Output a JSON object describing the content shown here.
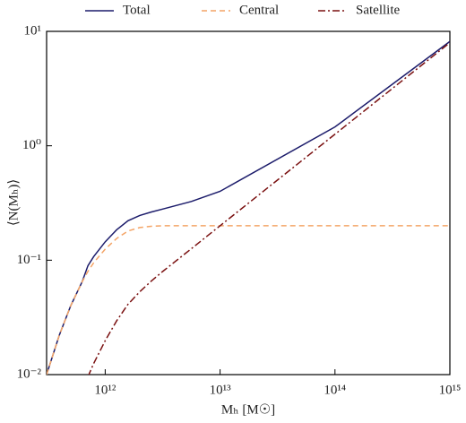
{
  "chart_data": {
    "type": "line",
    "xlabel": "Mₕ [M☉]",
    "ylabel": "⟨N(Mₕ)⟩",
    "xscale": "log",
    "yscale": "log",
    "x": [
      309000000000.0,
      398000000000.0,
      501000000000.0,
      631000000000.0,
      708000000000.0,
      794000000000.0,
      1000000000000.0,
      1260000000000.0,
      1580000000000.0,
      2000000000000.0,
      2510000000000.0,
      3160000000000.0,
      5620000000000.0,
      10000000000000.0,
      100000000000000.0,
      1000000000000000.0
    ],
    "series": [
      {
        "name": "Total",
        "color": "#1c1c6b",
        "dash": "solid",
        "values": [
          0.01,
          0.022,
          0.04,
          0.065,
          0.0896,
          0.1075,
          0.1448,
          0.1846,
          0.2212,
          0.246,
          0.2635,
          0.2796,
          0.326,
          0.4,
          1.462,
          8.16
        ]
      },
      {
        "name": "Central",
        "color": "#f4a466",
        "dash": "dashed",
        "values": [
          0.01,
          0.022,
          0.04,
          0.065,
          0.08,
          0.095,
          0.125,
          0.155,
          0.18,
          0.193,
          0.198,
          0.2,
          0.2,
          0.2,
          0.2,
          0.2
        ]
      },
      {
        "name": "Satellite",
        "color": "#7a1010",
        "dash": "dashdot",
        "values": [
          null,
          null,
          null,
          null,
          0.0096,
          0.0125,
          0.0198,
          0.0296,
          0.0412,
          0.053,
          0.0655,
          0.0796,
          0.126,
          0.2,
          1.262,
          7.96
        ]
      }
    ],
    "xlim": [
      309000000000.0,
      1000000000000000.0
    ],
    "ylim": [
      0.01,
      10
    ],
    "xticks": [
      {
        "value": 1000000000000.0,
        "label": "10¹²"
      },
      {
        "value": 10000000000000.0,
        "label": "10¹³"
      },
      {
        "value": 100000000000000.0,
        "label": "10¹⁴"
      },
      {
        "value": 1000000000000000.0,
        "label": "10¹⁵"
      }
    ],
    "yticks": [
      {
        "value": 0.01,
        "label": "10⁻²"
      },
      {
        "value": 0.1,
        "label": "10⁻¹"
      },
      {
        "value": 1,
        "label": "10⁰"
      },
      {
        "value": 10,
        "label": "10¹"
      }
    ],
    "legend": "top-outside"
  }
}
